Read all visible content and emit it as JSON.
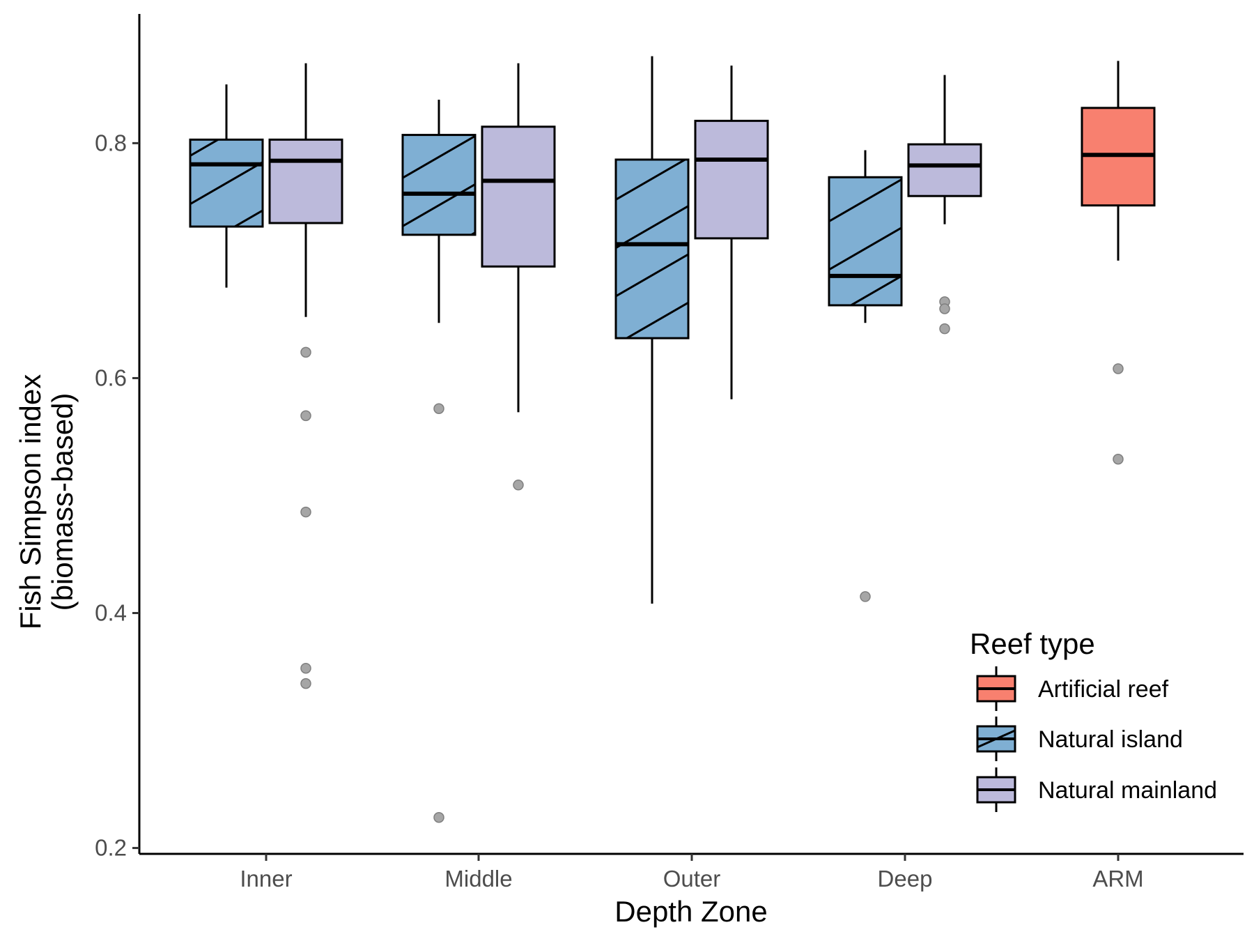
{
  "chart_data": {
    "type": "boxplot",
    "title": "",
    "xlabel": "Depth Zone",
    "ylabel": [
      "Fish Simpson index",
      "(biomass-based)"
    ],
    "ylim": [
      0.195,
      0.91
    ],
    "yticks": [
      0.2,
      0.4,
      0.6,
      0.8
    ],
    "ytick_labels": [
      "0.2",
      "0.4",
      "0.6",
      "0.8"
    ],
    "categories": [
      "Inner",
      "Middle",
      "Outer",
      "Deep",
      "ARM"
    ],
    "legend": {
      "title": "Reef type",
      "position": "bottom-right",
      "entries": [
        {
          "label": "Artificial reef",
          "color": "#F8806F",
          "hatched": false
        },
        {
          "label": "Natural island",
          "color": "#7FAFD3",
          "hatched": true
        },
        {
          "label": "Natural mainland",
          "color": "#BCBADB",
          "hatched": false
        }
      ]
    },
    "series": [
      {
        "name": "Natural island",
        "color": "#7FAFD3",
        "hatched": true,
        "boxes": [
          {
            "category": "Inner",
            "whisker_low": 0.677,
            "q1": 0.729,
            "median": 0.782,
            "q3": 0.803,
            "whisker_high": 0.85,
            "outliers": []
          },
          {
            "category": "Middle",
            "whisker_low": 0.647,
            "q1": 0.722,
            "median": 0.757,
            "q3": 0.807,
            "whisker_high": 0.837,
            "outliers": [
              0.574,
              0.226
            ]
          },
          {
            "category": "Outer",
            "whisker_low": 0.408,
            "q1": 0.634,
            "median": 0.714,
            "q3": 0.786,
            "whisker_high": 0.874,
            "outliers": []
          },
          {
            "category": "Deep",
            "whisker_low": 0.647,
            "q1": 0.662,
            "median": 0.687,
            "q3": 0.771,
            "whisker_high": 0.794,
            "outliers": [
              0.414
            ]
          }
        ]
      },
      {
        "name": "Natural mainland",
        "color": "#BCBADB",
        "hatched": false,
        "boxes": [
          {
            "category": "Inner",
            "whisker_low": 0.652,
            "q1": 0.732,
            "median": 0.785,
            "q3": 0.803,
            "whisker_high": 0.868,
            "outliers": [
              0.622,
              0.568,
              0.486,
              0.353,
              0.34
            ]
          },
          {
            "category": "Middle",
            "whisker_low": 0.571,
            "q1": 0.695,
            "median": 0.768,
            "q3": 0.814,
            "whisker_high": 0.868,
            "outliers": [
              0.509
            ]
          },
          {
            "category": "Outer",
            "whisker_low": 0.582,
            "q1": 0.719,
            "median": 0.786,
            "q3": 0.819,
            "whisker_high": 0.866,
            "outliers": []
          },
          {
            "category": "Deep",
            "whisker_low": 0.731,
            "q1": 0.755,
            "median": 0.781,
            "q3": 0.799,
            "whisker_high": 0.858,
            "outliers": [
              0.665,
              0.659,
              0.642
            ]
          }
        ]
      },
      {
        "name": "Artificial reef",
        "color": "#F8806F",
        "hatched": false,
        "boxes": [
          {
            "category": "ARM",
            "whisker_low": 0.7,
            "q1": 0.747,
            "median": 0.79,
            "q3": 0.83,
            "whisker_high": 0.87,
            "outliers": [
              0.608,
              0.531
            ]
          }
        ]
      }
    ]
  }
}
